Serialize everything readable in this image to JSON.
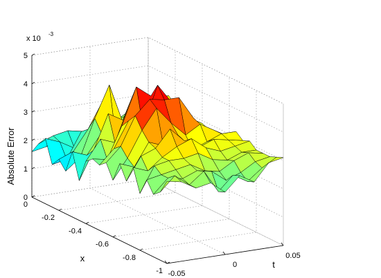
{
  "chart_data": {
    "type": "surface",
    "title": "",
    "xlabel": "x",
    "ylabel": "t",
    "zlabel": "Absolute Error",
    "z_multiplier_label": "x 10",
    "z_multiplier_exponent": "-3",
    "xlim": [
      -1,
      0
    ],
    "ylim": [
      -0.05,
      0.05
    ],
    "zlim": [
      0,
      5
    ],
    "x_ticks": [
      "0",
      "-0.2",
      "-0.4",
      "-0.6",
      "-0.8",
      "-1"
    ],
    "x_tick_values": [
      0,
      -0.2,
      -0.4,
      -0.6,
      -0.8,
      -1
    ],
    "t_ticks": [
      "-0.05",
      "0",
      "0.05"
    ],
    "t_tick_values": [
      -0.05,
      0,
      0.05
    ],
    "z_ticks": [
      "0",
      "1",
      "2",
      "3",
      "4",
      "5"
    ],
    "z_tick_values": [
      0,
      1,
      2,
      3,
      4,
      5
    ],
    "units": "x 10^-3",
    "grid": true,
    "colormap": "jet",
    "x": [
      0,
      -0.05,
      -0.1,
      -0.15,
      -0.2,
      -0.25,
      -0.3,
      -0.35,
      -0.4,
      -0.45,
      -0.5,
      -0.55,
      -0.6,
      -0.65,
      -0.7,
      -0.75,
      -0.8,
      -0.85,
      -0.9,
      -0.95,
      -1.0
    ],
    "t": [
      -0.05,
      -0.0375,
      -0.025,
      -0.0125,
      0,
      0.0125,
      0.025,
      0.0375,
      0.05
    ],
    "z": [
      [
        1.6,
        1.7,
        1.8,
        1.9,
        2.0,
        2.1,
        2.2,
        2.4,
        2.5
      ],
      [
        2.0,
        2.2,
        2.3,
        2.2,
        2.1,
        2.3,
        2.6,
        2.8,
        2.9
      ],
      [
        2.3,
        2.1,
        1.8,
        1.9,
        2.3,
        2.6,
        2.7,
        3.0,
        3.1
      ],
      [
        1.5,
        1.6,
        2.5,
        2.3,
        2.0,
        2.4,
        3.0,
        3.2,
        3.3
      ],
      [
        1.8,
        2.0,
        2.7,
        3.6,
        2.2,
        2.6,
        3.4,
        3.3,
        3.1
      ],
      [
        1.5,
        1.9,
        3.2,
        4.3,
        2.8,
        2.5,
        3.3,
        3.2,
        3.0
      ],
      [
        2.3,
        2.1,
        2.8,
        2.5,
        3.2,
        3.0,
        3.5,
        3.1,
        2.9
      ],
      [
        1.4,
        2.4,
        3.6,
        3.3,
        2.7,
        3.3,
        3.8,
        3.0,
        2.6
      ],
      [
        2.2,
        2.9,
        2.7,
        4.0,
        3.7,
        3.4,
        3.6,
        3.2,
        2.9
      ],
      [
        2.4,
        2.3,
        3.4,
        4.7,
        4.3,
        3.6,
        3.3,
        3.1,
        2.8
      ],
      [
        2.3,
        2.8,
        3.7,
        3.4,
        4.8,
        4.1,
        3.4,
        3.0,
        2.8
      ],
      [
        2.5,
        3.0,
        4.0,
        4.5,
        4.4,
        4.4,
        3.6,
        3.0,
        2.7
      ],
      [
        2.0,
        2.7,
        3.6,
        4.3,
        3.7,
        3.2,
        3.5,
        3.2,
        2.9
      ],
      [
        2.7,
        2.5,
        3.3,
        3.1,
        3.4,
        2.8,
        3.0,
        3.2,
        3.2
      ],
      [
        2.2,
        3.0,
        3.2,
        3.8,
        3.3,
        3.0,
        3.2,
        3.1,
        3.0
      ],
      [
        2.8,
        2.6,
        3.0,
        3.3,
        3.5,
        3.1,
        2.9,
        3.0,
        3.1
      ],
      [
        2.0,
        2.9,
        3.0,
        3.0,
        3.1,
        2.8,
        2.7,
        2.9,
        2.9
      ],
      [
        2.6,
        2.7,
        2.8,
        2.9,
        2.6,
        2.5,
        2.8,
        3.0,
        2.9
      ],
      [
        2.2,
        2.7,
        2.6,
        2.8,
        2.7,
        2.3,
        2.5,
        2.8,
        2.9
      ],
      [
        2.4,
        2.9,
        2.5,
        2.9,
        2.1,
        2.6,
        2.3,
        2.7,
        3.0
      ],
      [
        2.9,
        2.8,
        2.5,
        2.6,
        2.2,
        2.7,
        2.4,
        3.0,
        3.1
      ]
    ]
  }
}
